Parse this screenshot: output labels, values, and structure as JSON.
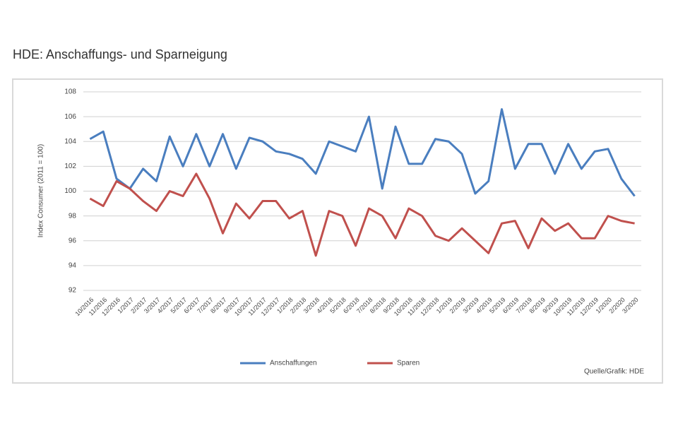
{
  "chart_data": {
    "type": "line",
    "title": "HDE: Anschaffungs- und Sparneigung",
    "y_label": "Index Consumer (2011 = 100)",
    "source": "Quelle/Grafik: HDE",
    "categories": [
      "10/2016",
      "11/2016",
      "12/2016",
      "1/2017",
      "2/2017",
      "3/2017",
      "4/2017",
      "5/2017",
      "6/2017",
      "7/2017",
      "8/2017",
      "9/2017",
      "10/2017",
      "11/2017",
      "12/2017",
      "1/2018",
      "2/2018",
      "3/2018",
      "4/2018",
      "5/2018",
      "6/2018",
      "7/2018",
      "8/2018",
      "9/2018",
      "10/2018",
      "11/2018",
      "12/2018",
      "1/2019",
      "2/2019",
      "3/2019",
      "4/2019",
      "5/2019",
      "6/2019",
      "7/2019",
      "8/2019",
      "9/2019",
      "10/2019",
      "11/2019",
      "12/2019",
      "1/2020",
      "2/2020",
      "3/2020"
    ],
    "series": [
      {
        "name": "Anschaffungen",
        "color": "#4a7ebf",
        "values": [
          104.2,
          104.8,
          101,
          100.2,
          101.8,
          100.8,
          104.4,
          102,
          104.6,
          102,
          104.6,
          101.8,
          104.3,
          104,
          103.2,
          103,
          102.6,
          101.4,
          104,
          103.6,
          103.2,
          106,
          100.2,
          105.2,
          102.2,
          102.2,
          104.2,
          104,
          103,
          99.8,
          100.8,
          106.6,
          101.8,
          103.8,
          103.8,
          101.4,
          103.8,
          101.8,
          103.2,
          103.4,
          101,
          99.6
        ]
      },
      {
        "name": "Sparen",
        "color": "#c0504d",
        "values": [
          99.4,
          98.8,
          100.8,
          100.2,
          99.2,
          98.4,
          100,
          99.6,
          101.4,
          99.4,
          96.6,
          99,
          97.8,
          99.2,
          99.2,
          97.8,
          98.4,
          94.8,
          98.4,
          98,
          95.6,
          98.6,
          98,
          96.2,
          98.6,
          98,
          96.4,
          96,
          97,
          96,
          95,
          97.4,
          97.6,
          95.4,
          97.8,
          96.8,
          97.4,
          96.2,
          96.2,
          98,
          97.6,
          97.4
        ]
      }
    ],
    "ylim": [
      92,
      108
    ],
    "yticks": [
      92,
      94,
      96,
      98,
      100,
      102,
      104,
      106,
      108
    ],
    "grid": true,
    "legend": "bottom"
  }
}
